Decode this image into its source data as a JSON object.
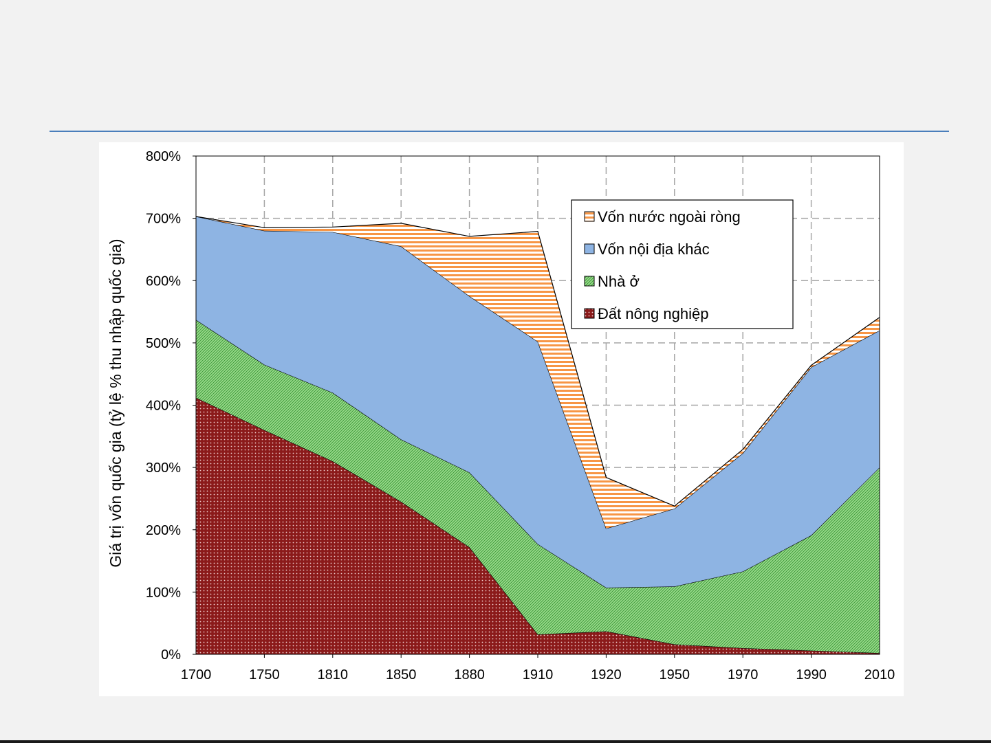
{
  "chart_data": {
    "type": "area",
    "stacked": true,
    "ylabel": "Giá trị vốn quốc gia (tỷ lệ % thu nhập quốc gia)",
    "xlabel": "",
    "categories": [
      "1700",
      "1750",
      "1810",
      "1850",
      "1880",
      "1910",
      "1920",
      "1950",
      "1970",
      "1990",
      "2010"
    ],
    "ylim": [
      0,
      800
    ],
    "yticks": [
      0,
      100,
      200,
      300,
      400,
      500,
      600,
      700,
      800
    ],
    "ytick_labels": [
      "0%",
      "100%",
      "200%",
      "300%",
      "400%",
      "500%",
      "600%",
      "700%",
      "800%"
    ],
    "grid": true,
    "legend_position": "top-right",
    "series": [
      {
        "name": "Đất nông nghiệp",
        "color": "#8b1a1a",
        "pattern": "dots",
        "values": [
          412,
          360,
          310,
          245,
          172,
          32,
          37,
          16,
          10,
          6,
          2
        ]
      },
      {
        "name": "Nhà ở",
        "color": "#7fcf6f",
        "pattern": "diagonal",
        "values": [
          125,
          105,
          110,
          100,
          120,
          145,
          70,
          93,
          123,
          185,
          298
        ]
      },
      {
        "name": "Vốn nội địa khác",
        "color": "#8eb4e3",
        "pattern": "solid",
        "values": [
          166,
          215,
          258,
          310,
          283,
          325,
          95,
          125,
          190,
          270,
          220
        ]
      },
      {
        "name": "Vốn nước ngoài ròng",
        "color": "#f79646",
        "pattern": "horizontal",
        "values": [
          0,
          5,
          8,
          37,
          96,
          177,
          82,
          4,
          6,
          3,
          21
        ]
      }
    ]
  }
}
